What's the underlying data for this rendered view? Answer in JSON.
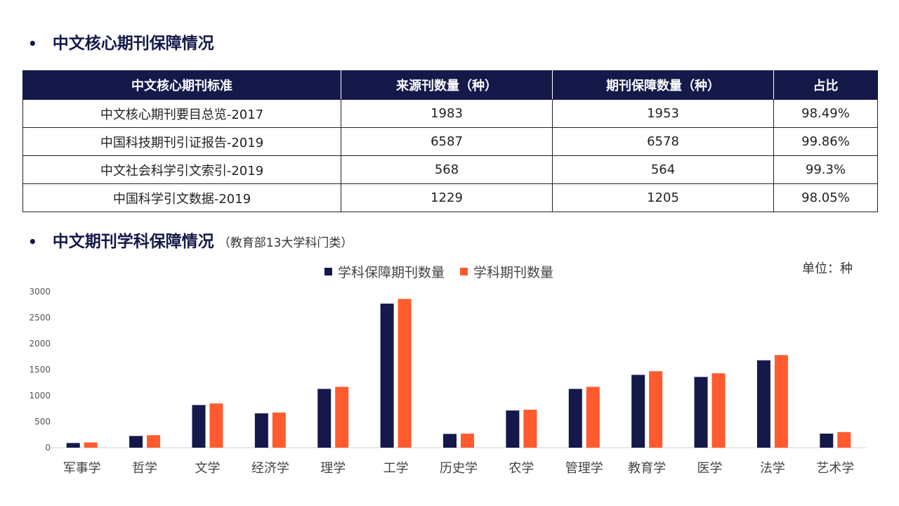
{
  "section1": {
    "bullet": "•",
    "title": "中文核心期刊保障情况"
  },
  "table": {
    "headers": [
      "中文核心期刊标准",
      "来源刊数量（种）",
      "期刊保障数量（种）",
      "占比"
    ],
    "rows": [
      [
        "中文核心期刊要目总览-2017",
        "1983",
        "1953",
        "98.49%"
      ],
      [
        "中国科技期刊引证报告-2019",
        "6587",
        "6578",
        "99.86%"
      ],
      [
        "中文社会科学引文索引-2019",
        "568",
        "564",
        "99.3%"
      ],
      [
        "中国科学引文数据-2019",
        "1229",
        "1205",
        "98.05%"
      ]
    ]
  },
  "section2": {
    "bullet": "•",
    "title": "中文期刊学科保障情况",
    "subtitle": "（教育部13大学科门类）"
  },
  "unit_label": "单位：种",
  "colors": {
    "navy": "#14194a",
    "orange": "#ff5b2e"
  },
  "chart_data": {
    "type": "bar",
    "categories": [
      "军事学",
      "哲学",
      "文学",
      "经济学",
      "理学",
      "工学",
      "历史学",
      "农学",
      "管理学",
      "教育学",
      "医学",
      "法学",
      "艺术学"
    ],
    "series": [
      {
        "name": "学科保障期刊数量",
        "color": "#14194a",
        "values": [
          90,
          225,
          820,
          660,
          1130,
          2770,
          265,
          715,
          1130,
          1400,
          1360,
          1680,
          270
        ]
      },
      {
        "name": "学科期刊数量",
        "color": "#ff5b2e",
        "values": [
          100,
          240,
          850,
          675,
          1170,
          2860,
          270,
          730,
          1170,
          1470,
          1430,
          1780,
          300
        ]
      }
    ],
    "yticks": [
      0,
      500,
      1000,
      1500,
      2000,
      2500,
      3000
    ],
    "ylim": [
      0,
      3000
    ],
    "legend_position": "top-center"
  }
}
